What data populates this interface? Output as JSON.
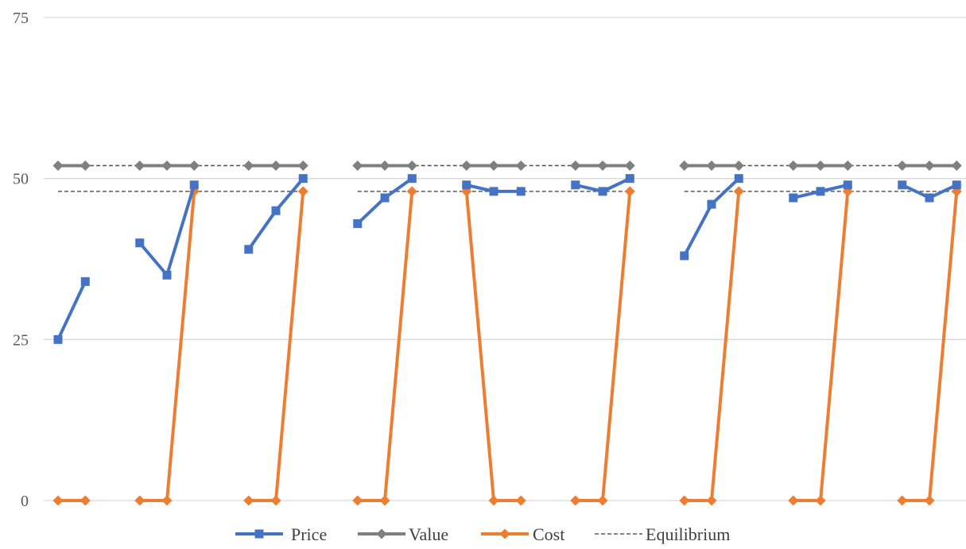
{
  "chart_data": {
    "type": "line",
    "title": "",
    "xlabel": "",
    "ylabel": "",
    "ylim": [
      0,
      75
    ],
    "yticks": [
      0,
      25,
      50,
      75
    ],
    "grid": true,
    "legend_position": "bottom",
    "n_points": 34,
    "series": [
      {
        "name": "Price",
        "color": "#4472C4",
        "marker": "square",
        "style": "solid",
        "values": [
          25,
          34,
          null,
          40,
          35,
          49,
          null,
          39,
          45,
          50,
          null,
          43,
          47,
          50,
          null,
          49,
          48,
          48,
          null,
          49,
          48,
          50,
          null,
          38,
          46,
          50,
          null,
          47,
          48,
          49,
          null,
          49,
          47,
          49
        ]
      },
      {
        "name": "Value",
        "color": "#7F7F7F",
        "marker": "diamond",
        "style": "solid",
        "values": [
          52,
          52,
          null,
          52,
          52,
          52,
          null,
          52,
          52,
          52,
          null,
          52,
          52,
          52,
          null,
          52,
          52,
          52,
          null,
          52,
          52,
          52,
          null,
          52,
          52,
          52,
          null,
          52,
          52,
          52,
          null,
          52,
          52,
          52
        ]
      },
      {
        "name": "Cost",
        "color": "#ED7D31",
        "marker": "diamond",
        "style": "solid",
        "values": [
          0,
          0,
          null,
          0,
          0,
          48,
          null,
          0,
          0,
          48,
          null,
          0,
          0,
          48,
          null,
          48,
          0,
          0,
          null,
          0,
          0,
          48,
          null,
          0,
          0,
          48,
          null,
          0,
          0,
          48,
          null,
          0,
          0,
          48
        ]
      },
      {
        "name": "Equilibrium",
        "color": "#595959",
        "marker": "none",
        "style": "dashed",
        "segments": [
          {
            "x": [
              0,
              9
            ],
            "upper": 52,
            "lower": 48
          },
          {
            "x": [
              11,
              21
            ],
            "upper": 52,
            "lower": 48
          },
          {
            "x": [
              23,
              33
            ],
            "upper": 52,
            "lower": 48
          }
        ]
      }
    ]
  }
}
